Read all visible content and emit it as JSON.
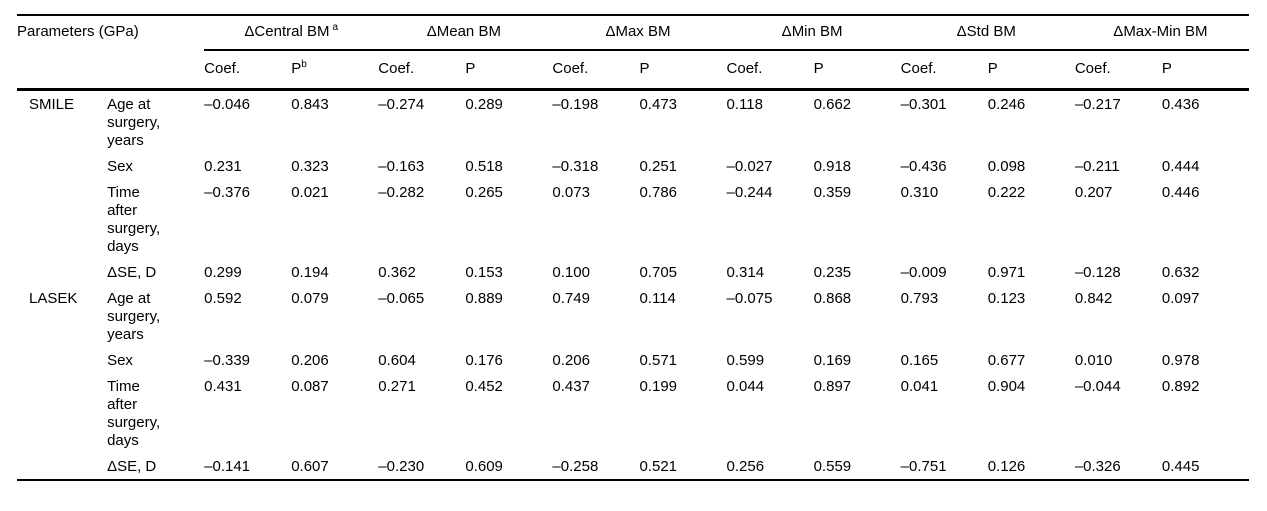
{
  "page": {
    "background_color": "#ffffff",
    "text_color": "#000000"
  },
  "table": {
    "corner_header": "Parameters (GPa)",
    "column_groups": [
      {
        "label": "ΔCentral BM",
        "sup": "a"
      },
      {
        "label": "ΔMean BM",
        "sup": ""
      },
      {
        "label": "ΔMax BM",
        "sup": ""
      },
      {
        "label": "ΔMin BM",
        "sup": ""
      },
      {
        "label": "ΔStd BM",
        "sup": ""
      },
      {
        "label": "ΔMax-Min BM",
        "sup": ""
      }
    ],
    "sub_columns": [
      {
        "label": "Coef.",
        "sup": ""
      },
      {
        "label": "P",
        "sup": "b"
      },
      {
        "label": "Coef.",
        "sup": ""
      },
      {
        "label": "P",
        "sup": ""
      },
      {
        "label": "Coef.",
        "sup": ""
      },
      {
        "label": "P",
        "sup": ""
      },
      {
        "label": "Coef.",
        "sup": ""
      },
      {
        "label": "P",
        "sup": ""
      },
      {
        "label": "Coef.",
        "sup": ""
      },
      {
        "label": "P",
        "sup": ""
      },
      {
        "label": "Coef.",
        "sup": ""
      },
      {
        "label": "P",
        "sup": ""
      }
    ],
    "rows": [
      {
        "group": "SMILE",
        "parameter": "Age at surgery, years",
        "values": [
          "–0.046",
          "0.843",
          "–0.274",
          "0.289",
          "–0.198",
          "0.473",
          "0.118",
          "0.662",
          "–0.301",
          "0.246",
          "–0.217",
          "0.436"
        ]
      },
      {
        "group": "",
        "parameter": "Sex",
        "values": [
          "0.231",
          "0.323",
          "–0.163",
          "0.518",
          "–0.318",
          "0.251",
          "–0.027",
          "0.918",
          "–0.436",
          "0.098",
          "–0.211",
          "0.444"
        ]
      },
      {
        "group": "",
        "parameter": "Time after surgery, days",
        "values": [
          "–0.376",
          "0.021",
          "–0.282",
          "0.265",
          "0.073",
          "0.786",
          "–0.244",
          "0.359",
          "0.310",
          "0.222",
          "0.207",
          "0.446"
        ]
      },
      {
        "group": "",
        "parameter": "ΔSE, D",
        "values": [
          "0.299",
          "0.194",
          "0.362",
          "0.153",
          "0.100",
          "0.705",
          "0.314",
          "0.235",
          "–0.009",
          "0.971",
          "–0.128",
          "0.632"
        ]
      },
      {
        "group": "LASEK",
        "parameter": "Age at surgery, years",
        "values": [
          "0.592",
          "0.079",
          "–0.065",
          "0.889",
          "0.749",
          "0.114",
          "–0.075",
          "0.868",
          "0.793",
          "0.123",
          "0.842",
          "0.097"
        ]
      },
      {
        "group": "",
        "parameter": "Sex",
        "values": [
          "–0.339",
          "0.206",
          "0.604",
          "0.176",
          "0.206",
          "0.571",
          "0.599",
          "0.169",
          "0.165",
          "0.677",
          "0.010",
          "0.978"
        ]
      },
      {
        "group": "",
        "parameter": "Time after surgery, days",
        "values": [
          "0.431",
          "0.087",
          "0.271",
          "0.452",
          "0.437",
          "0.199",
          "0.044",
          "0.897",
          "0.041",
          "0.904",
          "–0.044",
          "0.892"
        ]
      },
      {
        "group": "",
        "parameter": "ΔSE, D",
        "values": [
          "–0.141",
          "0.607",
          "–0.230",
          "0.609",
          "–0.258",
          "0.521",
          "0.256",
          "0.559",
          "–0.751",
          "0.126",
          "–0.326",
          "0.445"
        ]
      }
    ]
  }
}
